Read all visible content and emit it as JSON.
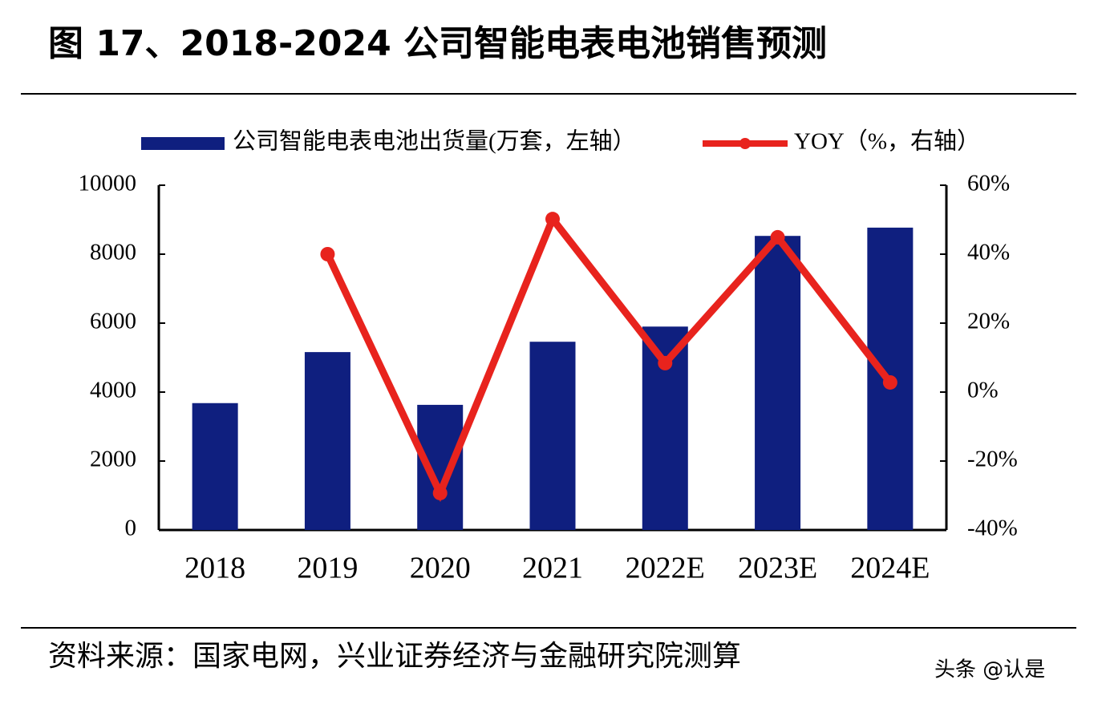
{
  "chart_data": {
    "type": "bar_line",
    "title": "图 17、2018-2024 公司智能电表电池销售预测",
    "categories": [
      "2018",
      "2019",
      "2020",
      "2021",
      "2022E",
      "2023E",
      "2024E"
    ],
    "series": [
      {
        "name": "公司智能电表电池出货量(万套，左轴）",
        "type": "bar",
        "color": "#0f1f7f",
        "values": [
          3680,
          5160,
          3630,
          5460,
          5900,
          8530,
          8770
        ]
      },
      {
        "name": "YOY（%，右轴）",
        "type": "line",
        "axis": "y2",
        "color": "#e8231d",
        "values": [
          null,
          40.0,
          -29.3,
          50.2,
          8.4,
          44.9,
          2.8
        ]
      }
    ],
    "ylim": [
      0,
      10000
    ],
    "yticks": [
      0,
      2000,
      4000,
      6000,
      8000,
      10000
    ],
    "y2lim": [
      -40,
      60
    ],
    "y2ticks": [
      {
        "value": -40,
        "label": "-40%"
      },
      {
        "value": -20,
        "label": "-20%"
      },
      {
        "value": 0,
        "label": "0%"
      },
      {
        "value": 20,
        "label": "20%"
      },
      {
        "value": 40,
        "label": "40%"
      },
      {
        "value": 60,
        "label": "60%"
      }
    ],
    "source": "资料来源：国家电网，兴业证券经济与金融研究院测算",
    "watermark": "头条 @认是"
  }
}
